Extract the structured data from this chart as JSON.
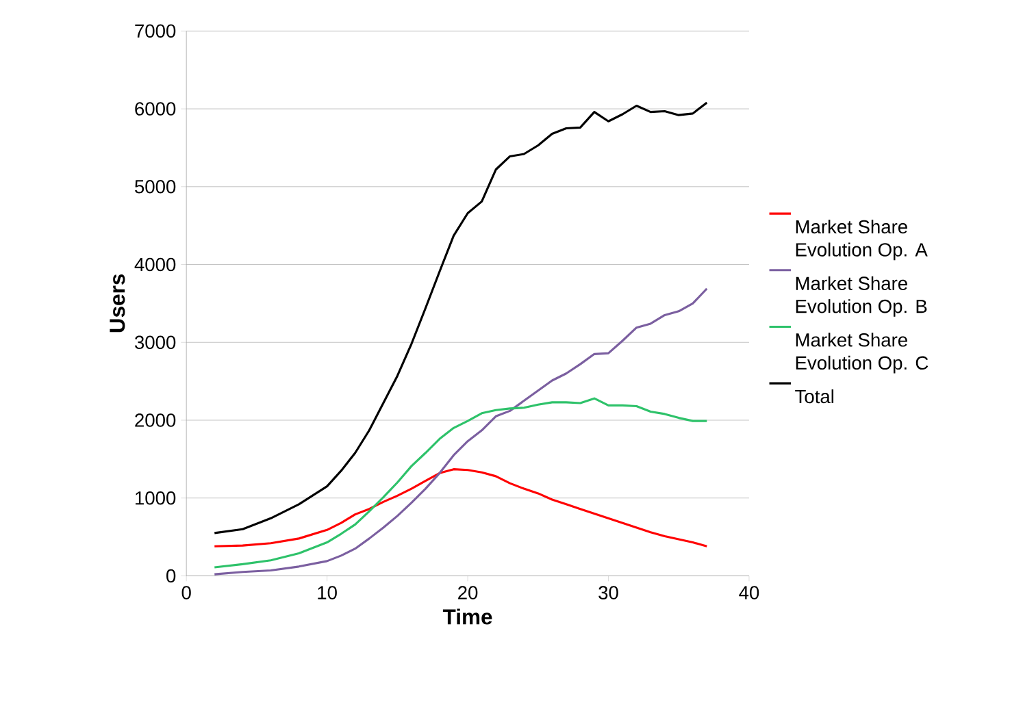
{
  "chart_data": {
    "type": "line",
    "xlabel": "Time",
    "ylabel": "Users",
    "x": [
      2,
      4,
      6,
      8,
      10,
      11,
      12,
      13,
      14,
      15,
      16,
      17,
      18,
      19,
      20,
      21,
      22,
      23,
      24,
      25,
      26,
      27,
      28,
      29,
      30,
      31,
      32,
      33,
      34,
      35,
      36,
      37
    ],
    "series": [
      {
        "name": "Market Share Evolution Op. A",
        "color": "#ff0000",
        "values": [
          380,
          390,
          420,
          480,
          590,
          680,
          790,
          860,
          950,
          1030,
          1120,
          1220,
          1320,
          1370,
          1360,
          1330,
          1280,
          1190,
          1120,
          1060,
          980,
          920,
          860,
          800,
          740,
          680,
          620,
          560,
          510,
          470,
          430,
          380
        ]
      },
      {
        "name": "Market Share Evolution Op. B",
        "color": "#7b5fa0",
        "values": [
          20,
          50,
          70,
          120,
          190,
          260,
          350,
          480,
          620,
          770,
          940,
          1120,
          1320,
          1550,
          1730,
          1870,
          2050,
          2120,
          2250,
          2380,
          2510,
          2600,
          2720,
          2850,
          2860,
          3020,
          3190,
          3240,
          3350,
          3400,
          3500,
          3690
        ]
      },
      {
        "name": "Market Share Evolution Op. C",
        "color": "#2ec26a",
        "values": [
          110,
          150,
          200,
          290,
          430,
          540,
          660,
          830,
          1010,
          1200,
          1410,
          1580,
          1760,
          1900,
          1990,
          2090,
          2130,
          2150,
          2160,
          2200,
          2230,
          2230,
          2220,
          2280,
          2190,
          2190,
          2180,
          2110,
          2080,
          2030,
          1990,
          1990
        ]
      },
      {
        "name": "Total",
        "color": "#000000",
        "values": [
          550,
          600,
          740,
          920,
          1150,
          1350,
          1580,
          1870,
          2220,
          2570,
          2980,
          3440,
          3910,
          4370,
          4660,
          4810,
          5220,
          5390,
          5420,
          5530,
          5680,
          5750,
          5760,
          5960,
          5840,
          5930,
          6040,
          5960,
          5970,
          5920,
          5940,
          6080
        ]
      }
    ],
    "xlim": [
      0,
      40
    ],
    "xticks": [
      0,
      10,
      20,
      30,
      40
    ],
    "ylim": [
      0,
      7000
    ],
    "yticks": [
      0,
      1000,
      2000,
      3000,
      4000,
      5000,
      6000,
      7000
    ],
    "grid": "y",
    "legend": "right",
    "marker": "none",
    "line_style": "solid"
  }
}
